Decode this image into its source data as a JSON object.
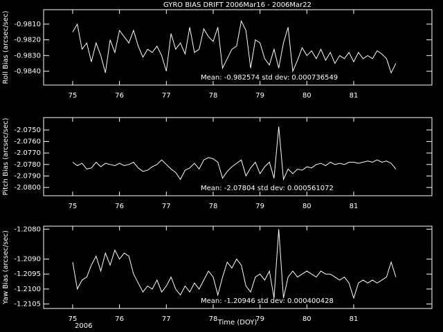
{
  "chart_data": [
    {
      "type": "line",
      "title": "GYRO BIAS DRIFT 2006Mar16 - 2006Mar22",
      "ylabel": "Roll Bias (arcsec/sec)",
      "annotation": "Mean: -0.982574 std dev: 0.000736549",
      "color": "#ffffff",
      "xlim": [
        74.38,
        82.67
      ],
      "xticks": [
        75,
        76,
        77,
        78,
        79,
        80,
        81
      ],
      "ylim": [
        -0.98488,
        -0.98008
      ],
      "yticks": [
        {
          "value": -0.981,
          "label": "-0.9810"
        },
        {
          "value": -0.982,
          "label": "-0.9820"
        },
        {
          "value": -0.983,
          "label": "-0.9830"
        },
        {
          "value": -0.984,
          "label": "-0.9840"
        }
      ],
      "x": [
        75.0,
        75.1,
        75.2,
        75.3,
        75.4,
        75.5,
        75.6,
        75.7,
        75.8,
        75.9,
        76.0,
        76.1,
        76.2,
        76.3,
        76.4,
        76.5,
        76.6,
        76.7,
        76.8,
        76.9,
        77.0,
        77.1,
        77.2,
        77.3,
        77.4,
        77.5,
        77.6,
        77.7,
        77.8,
        77.9,
        78.0,
        78.1,
        78.2,
        78.3,
        78.4,
        78.5,
        78.6,
        78.7,
        78.8,
        78.9,
        79.0,
        79.1,
        79.2,
        79.3,
        79.4,
        79.5,
        79.6,
        79.7,
        79.8,
        79.9,
        80.0,
        80.1,
        80.2,
        80.3,
        80.4,
        80.5,
        80.6,
        80.7,
        80.8,
        80.9,
        81.0,
        81.1,
        81.2,
        81.3,
        81.4,
        81.5,
        81.6,
        81.7,
        81.8,
        81.9
      ],
      "values": [
        -0.9815,
        -0.981,
        -0.9826,
        -0.9822,
        -0.9834,
        -0.9822,
        -0.983,
        -0.9841,
        -0.982,
        -0.9828,
        -0.9814,
        -0.9818,
        -0.9822,
        -0.9814,
        -0.9824,
        -0.9831,
        -0.9826,
        -0.9828,
        -0.9824,
        -0.983,
        -0.984,
        -0.9816,
        -0.9826,
        -0.9822,
        -0.9829,
        -0.9812,
        -0.9828,
        -0.9826,
        -0.9813,
        -0.9818,
        -0.9821,
        -0.9812,
        -0.9838,
        -0.9832,
        -0.9826,
        -0.9824,
        -0.9808,
        -0.9814,
        -0.9838,
        -0.982,
        -0.9822,
        -0.9832,
        -0.9836,
        -0.9826,
        -0.9838,
        -0.9822,
        -0.9812,
        -0.984,
        -0.9833,
        -0.9825,
        -0.983,
        -0.9827,
        -0.9832,
        -0.9826,
        -0.9833,
        -0.9828,
        -0.9835,
        -0.983,
        -0.9832,
        -0.9828,
        -0.9834,
        -0.9828,
        -0.9832,
        -0.983,
        -0.9832,
        -0.9827,
        -0.9829,
        -0.9832,
        -0.9841,
        -0.9835
      ]
    },
    {
      "type": "line",
      "ylabel": "Pitch Bias (arcsec/sec)",
      "annotation": "Mean: -2.07804 std dev: 0.000561072",
      "color": "#ffffff",
      "xlim": [
        74.38,
        82.67
      ],
      "xticks": [
        75,
        76,
        77,
        78,
        79,
        80,
        81
      ],
      "ylim": [
        -2.08072,
        -2.07392
      ],
      "yticks": [
        {
          "value": -2.075,
          "label": "-2.0750"
        },
        {
          "value": -2.076,
          "label": "-2.0760"
        },
        {
          "value": -2.077,
          "label": "-2.0770"
        },
        {
          "value": -2.078,
          "label": "-2.0780"
        },
        {
          "value": -2.079,
          "label": "-2.0790"
        },
        {
          "value": -2.08,
          "label": "-2.0800"
        }
      ],
      "x": [
        75.0,
        75.1,
        75.2,
        75.3,
        75.4,
        75.5,
        75.6,
        75.7,
        75.8,
        75.9,
        76.0,
        76.1,
        76.2,
        76.3,
        76.4,
        76.5,
        76.6,
        76.7,
        76.8,
        76.9,
        77.0,
        77.1,
        77.2,
        77.3,
        77.4,
        77.5,
        77.6,
        77.7,
        77.8,
        77.9,
        78.0,
        78.1,
        78.2,
        78.3,
        78.4,
        78.5,
        78.6,
        78.7,
        78.8,
        78.9,
        79.0,
        79.1,
        79.2,
        79.3,
        79.4,
        79.5,
        79.6,
        79.7,
        79.8,
        79.9,
        80.0,
        80.1,
        80.2,
        80.3,
        80.4,
        80.5,
        80.6,
        80.7,
        80.8,
        80.9,
        81.0,
        81.1,
        81.2,
        81.3,
        81.4,
        81.5,
        81.6,
        81.7,
        81.8,
        81.9
      ],
      "values": [
        -2.0778,
        -2.0781,
        -2.0779,
        -2.0784,
        -2.0783,
        -2.0778,
        -2.0782,
        -2.0779,
        -2.078,
        -2.0781,
        -2.0779,
        -2.0781,
        -2.078,
        -2.0778,
        -2.0783,
        -2.0786,
        -2.0785,
        -2.0782,
        -2.078,
        -2.0776,
        -2.078,
        -2.0784,
        -2.0787,
        -2.0793,
        -2.0785,
        -2.0783,
        -2.0779,
        -2.0784,
        -2.0776,
        -2.0774,
        -2.0775,
        -2.0778,
        -2.0792,
        -2.0786,
        -2.0782,
        -2.0779,
        -2.0776,
        -2.079,
        -2.0783,
        -2.0778,
        -2.0788,
        -2.0782,
        -2.0778,
        -2.0792,
        -2.0747,
        -2.0793,
        -2.0784,
        -2.0788,
        -2.0784,
        -2.0785,
        -2.0782,
        -2.0783,
        -2.078,
        -2.0779,
        -2.0781,
        -2.0778,
        -2.078,
        -2.0779,
        -2.078,
        -2.0778,
        -2.0778,
        -2.0779,
        -2.0778,
        -2.0777,
        -2.0778,
        -2.0776,
        -2.0778,
        -2.0777,
        -2.0779,
        -2.0784
      ]
    },
    {
      "type": "line",
      "ylabel": "Yaw Bias (arcsec/sec)",
      "annotation": "Mean: -1.20946 std dev: 0.000400428",
      "xlabel": "Time (DOY)",
      "footnote": "2006",
      "color": "#ffffff",
      "xlim": [
        74.38,
        82.67
      ],
      "xticks": [
        75,
        76,
        77,
        78,
        79,
        80,
        81
      ],
      "ylim": [
        -1.21065,
        -1.2079
      ],
      "yticks": [
        {
          "value": -1.208,
          "label": "-1.2080"
        },
        {
          "value": -1.209,
          "label": "-1.2090"
        },
        {
          "value": -1.2095,
          "label": "-1.2095"
        },
        {
          "value": -1.21,
          "label": "-1.2100"
        },
        {
          "value": -1.2105,
          "label": "-1.2105"
        }
      ],
      "x": [
        75.0,
        75.1,
        75.2,
        75.3,
        75.4,
        75.5,
        75.6,
        75.7,
        75.8,
        75.9,
        76.0,
        76.1,
        76.2,
        76.3,
        76.4,
        76.5,
        76.6,
        76.7,
        76.8,
        76.9,
        77.0,
        77.1,
        77.2,
        77.3,
        77.4,
        77.5,
        77.6,
        77.7,
        77.8,
        77.9,
        78.0,
        78.1,
        78.2,
        78.3,
        78.4,
        78.5,
        78.6,
        78.7,
        78.8,
        78.9,
        79.0,
        79.1,
        79.2,
        79.3,
        79.4,
        79.5,
        79.6,
        79.7,
        79.8,
        79.9,
        80.0,
        80.1,
        80.2,
        80.3,
        80.4,
        80.5,
        80.6,
        80.7,
        80.8,
        80.9,
        81.0,
        81.1,
        81.2,
        81.3,
        81.4,
        81.5,
        81.6,
        81.7,
        81.8,
        81.9
      ],
      "values": [
        -1.2091,
        -1.21,
        -1.2097,
        -1.2096,
        -1.2092,
        -1.2089,
        -1.2094,
        -1.2088,
        -1.2092,
        -1.2087,
        -1.209,
        -1.2088,
        -1.2089,
        -1.2095,
        -1.2098,
        -1.2101,
        -1.2099,
        -1.21,
        -1.2097,
        -1.2101,
        -1.2099,
        -1.2096,
        -1.21,
        -1.2102,
        -1.2099,
        -1.2101,
        -1.2098,
        -1.21,
        -1.2097,
        -1.2094,
        -1.2096,
        -1.2102,
        -1.2096,
        -1.2091,
        -1.2093,
        -1.209,
        -1.2092,
        -1.2099,
        -1.2101,
        -1.2096,
        -1.2095,
        -1.2097,
        -1.2094,
        -1.2103,
        -1.208,
        -1.2103,
        -1.2096,
        -1.2094,
        -1.2096,
        -1.2095,
        -1.2094,
        -1.2095,
        -1.2096,
        -1.2094,
        -1.2095,
        -1.2095,
        -1.2096,
        -1.2097,
        -1.2096,
        -1.2098,
        -1.2103,
        -1.2098,
        -1.2097,
        -1.2098,
        -1.2097,
        -1.2098,
        -1.2097,
        -1.2096,
        -1.2091,
        -1.2096
      ]
    }
  ]
}
